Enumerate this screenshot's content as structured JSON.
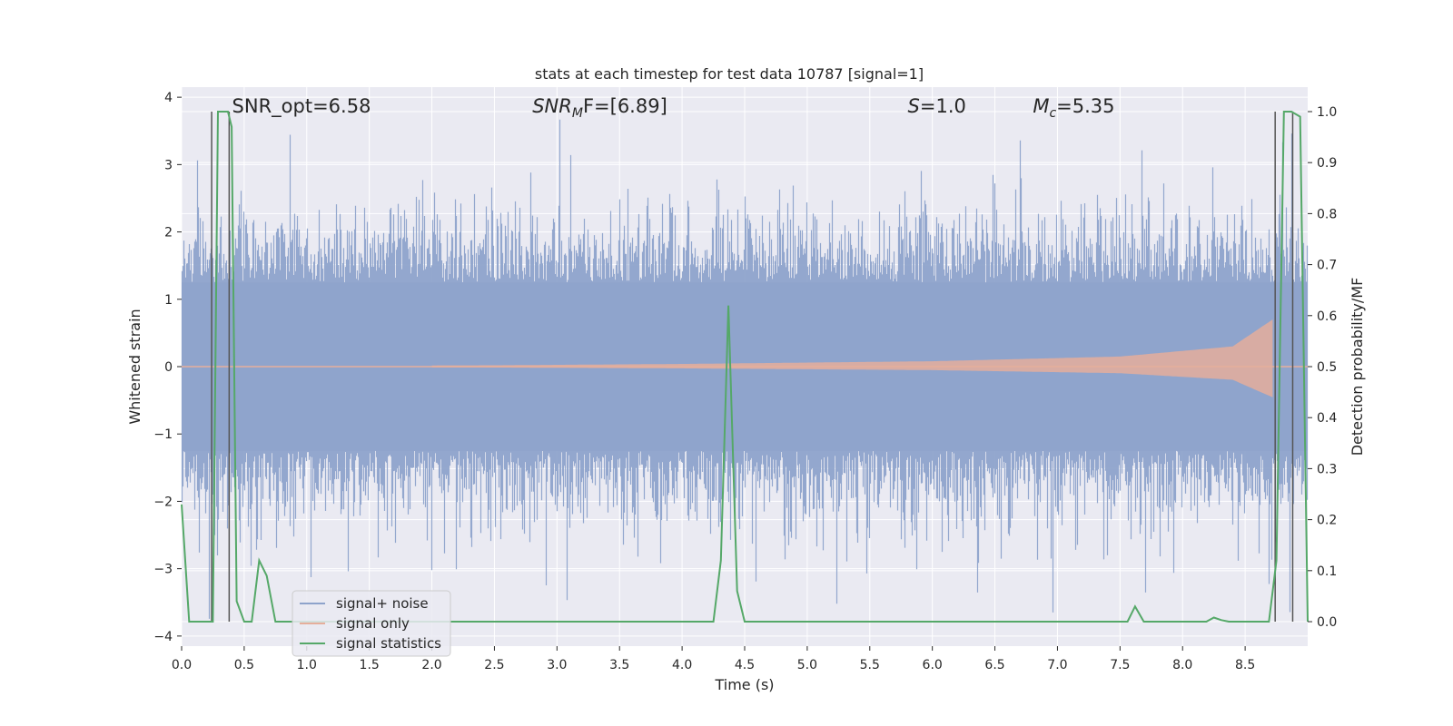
{
  "chart_data": {
    "type": "line",
    "title": "stats at each timestep for test data 10787 [signal=1]",
    "xlabel": "Time (s)",
    "ylabel": "Whitened strain",
    "y2label": "Detection probability/MF",
    "xlim": [
      0,
      9
    ],
    "ylim": [
      -4.15,
      4.15
    ],
    "y2lim": [
      -0.048,
      1.048
    ],
    "xticks": [
      "0.0",
      "0.5",
      "1.0",
      "1.5",
      "2.0",
      "2.5",
      "3.0",
      "3.5",
      "4.0",
      "4.5",
      "5.0",
      "5.5",
      "6.0",
      "6.5",
      "7.0",
      "7.5",
      "8.0",
      "8.5"
    ],
    "yticks": [
      "4",
      "3",
      "2",
      "1",
      "0",
      "−1",
      "−2",
      "−3",
      "−4"
    ],
    "y2ticks": [
      "1.0",
      "0.9",
      "0.8",
      "0.7",
      "0.6",
      "0.5",
      "0.4",
      "0.3",
      "0.2",
      "0.1",
      "0.0"
    ],
    "grid": true,
    "legend_position": "lower-left",
    "annotations": [
      {
        "pre": "SNR_opt=6.58",
        "base": "",
        "sub": "",
        "post": "",
        "x": 0.2
      },
      {
        "pre": "",
        "base": "SNR",
        "sub": "M",
        "post": "F=[6.89]",
        "x": 2.6
      },
      {
        "pre": "",
        "base": "S",
        "sub": "",
        "post": "=1.0",
        "x": 5.6
      },
      {
        "pre": "",
        "base": "M",
        "sub": "c",
        "post": "=5.35",
        "x": 6.6
      }
    ],
    "series": [
      {
        "name": "signal+ noise",
        "color": "#8ea3cb",
        "envelope": {
          "positive_max": 3.75,
          "negative_min": -4.0,
          "typical_range": [
            -2.2,
            2.3
          ]
        }
      },
      {
        "name": "signal only",
        "color": "#e5ae9b",
        "description_points": {
          "t": [
            0,
            2.5,
            4.0,
            6.0,
            7.5,
            8.4,
            8.72
          ],
          "amplitude": [
            0.01,
            0.02,
            0.04,
            0.08,
            0.15,
            0.3,
            0.7
          ]
        }
      },
      {
        "name": "signal statistics",
        "color": "#55a868",
        "x": [
          0.0,
          0.06,
          0.13,
          0.19,
          0.25,
          0.29,
          0.31,
          0.37,
          0.4,
          0.44,
          0.5,
          0.56,
          0.62,
          0.68,
          0.75,
          0.81,
          1.0,
          2.0,
          3.0,
          4.0,
          4.25,
          4.31,
          4.37,
          4.44,
          4.5,
          4.75,
          5.0,
          6.0,
          7.0,
          7.56,
          7.62,
          7.69,
          8.0,
          8.19,
          8.25,
          8.31,
          8.37,
          8.5,
          8.56,
          8.69,
          8.75,
          8.81,
          8.87,
          8.94,
          9.0
        ],
        "y": [
          0.23,
          0.0,
          0.0,
          0.0,
          0.0,
          1.0,
          1.0,
          1.0,
          0.97,
          0.04,
          0.0,
          0.0,
          0.12,
          0.09,
          0.0,
          0.0,
          0.0,
          0.0,
          0.0,
          0.0,
          0.0,
          0.12,
          0.62,
          0.06,
          0.0,
          0.0,
          0.0,
          0.0,
          0.0,
          0.0,
          0.03,
          0.0,
          0.0,
          0.0,
          0.008,
          0.003,
          0.0,
          0.0,
          0.0,
          0.0,
          0.12,
          1.0,
          1.0,
          0.99,
          0.0
        ]
      }
    ],
    "vertical_lines": [
      0.24,
      0.38,
      8.74,
      8.88
    ]
  }
}
